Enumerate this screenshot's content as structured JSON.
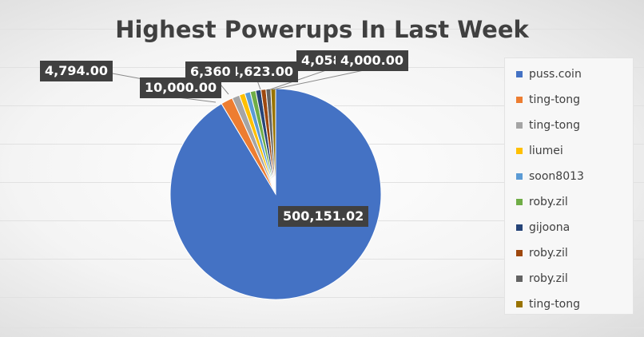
{
  "chart_data": {
    "type": "pie",
    "title": "Highest Powerups In Last Week",
    "categories": [
      "puss.coin",
      "ting-tong",
      "ting-tong",
      "liumei",
      "soon8013",
      "roby.zil",
      "gijoona",
      "roby.zil",
      "roby.zil",
      "ting-tong"
    ],
    "values": [
      500151.02,
      10000.0,
      6360,
      4794.0,
      4623.0,
      4600,
      4400,
      4200,
      4058,
      4000.0
    ],
    "colors": [
      "#4472C4",
      "#ED7D31",
      "#A5A5A5",
      "#FFC000",
      "#5B9BD5",
      "#70AD47",
      "#264478",
      "#9E480E",
      "#636363",
      "#997300"
    ],
    "data_labels": [
      {
        "index": 0,
        "text": "500,151.02"
      },
      {
        "index": 1,
        "text": "10,000.00"
      },
      {
        "index": 3,
        "text": "4,794.00"
      },
      {
        "index": 4,
        "text": "4,623.00"
      },
      {
        "index": 2,
        "text": "6,360"
      },
      {
        "index": 8,
        "text": "4,058"
      },
      {
        "index": 9,
        "text": "4,000.00"
      }
    ],
    "legend_position": "right",
    "grid": true
  }
}
